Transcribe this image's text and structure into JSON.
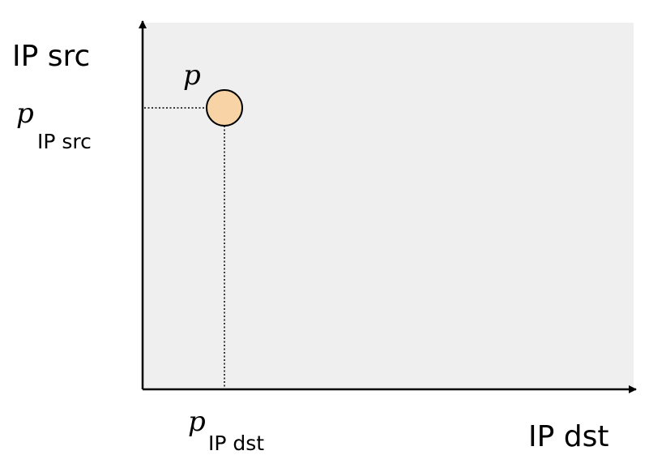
{
  "axes": {
    "y_label": "IP src",
    "x_label": "IP dst"
  },
  "point": {
    "label": "p",
    "src_projection": {
      "symbol": "p",
      "subscript": "IP src"
    },
    "dst_projection": {
      "symbol": "p",
      "subscript": "IP dst"
    }
  },
  "colors": {
    "plot_background": "#efefef",
    "point_fill": "#f8d3a6",
    "stroke": "#000000"
  }
}
